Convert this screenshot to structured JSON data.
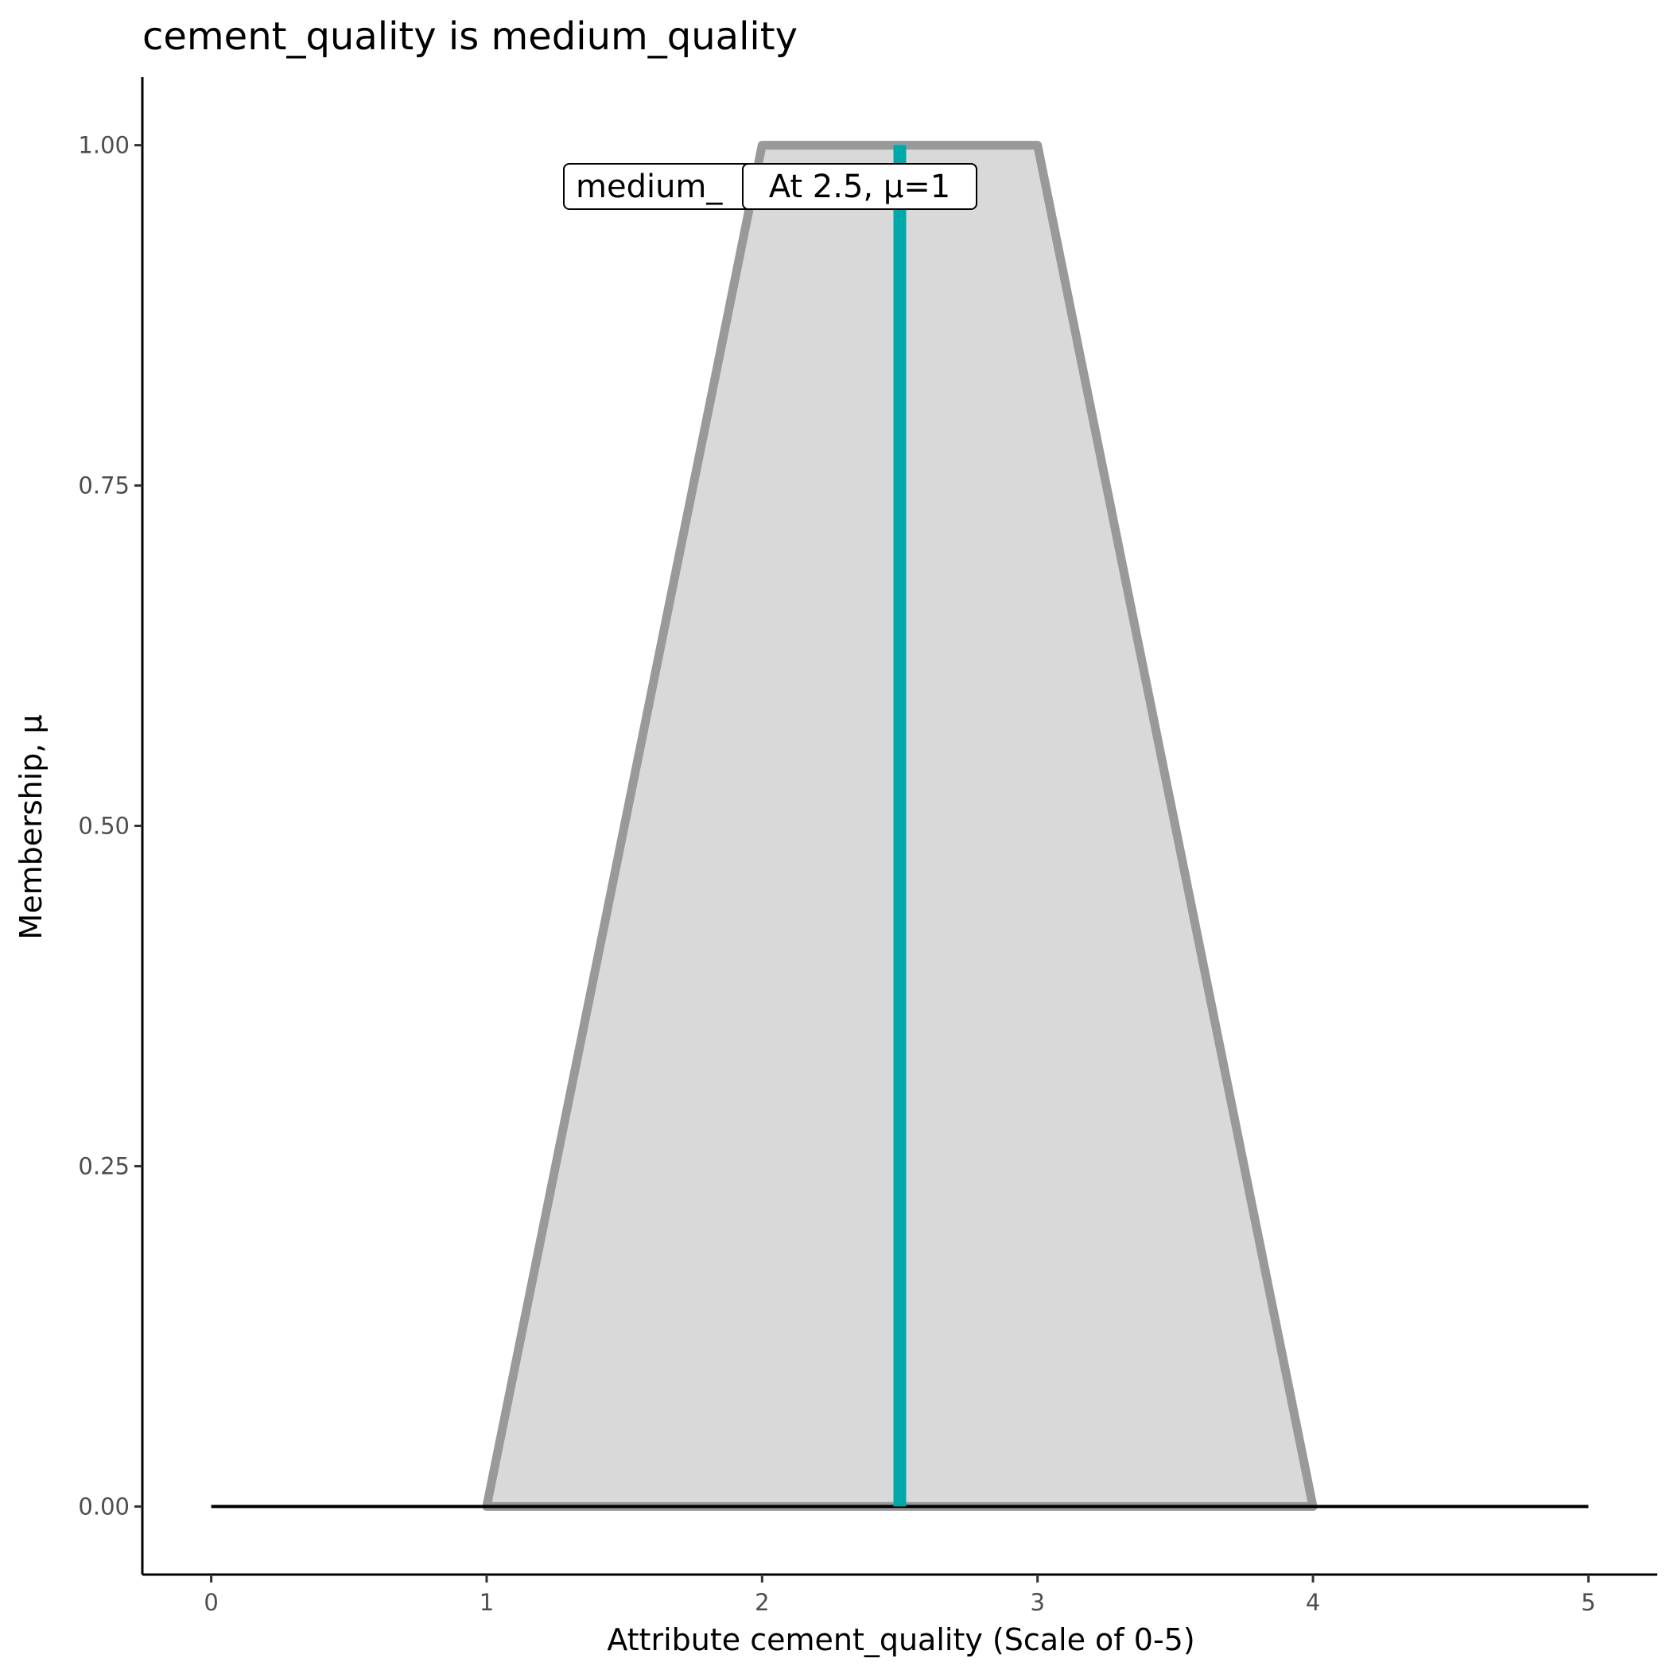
{
  "chart_data": {
    "type": "area",
    "title": "cement_quality is medium_quality",
    "xlabel": "Attribute cement_quality (Scale of 0-5)",
    "ylabel": "Membership, μ",
    "xlim": [
      -0.25,
      5.25
    ],
    "ylim": [
      -0.05,
      1.05
    ],
    "x_ticks": [
      "0",
      "1",
      "2",
      "3",
      "4",
      "5"
    ],
    "y_ticks": [
      "0.00",
      "0.25",
      "0.50",
      "0.75",
      "1.00"
    ],
    "grid": false,
    "series": [
      {
        "x": [
          1,
          2,
          3,
          4
        ],
        "y": [
          0,
          1,
          1,
          0
        ],
        "fill": "#d9d9d9",
        "stroke": "#999999"
      }
    ],
    "baseline": {
      "x": [
        0,
        5
      ],
      "y": 0,
      "color": "#000000"
    },
    "marker_line": {
      "x": 2.5,
      "y": [
        0,
        1
      ],
      "color": "#00a9a9"
    },
    "labels": [
      {
        "text": "medium_quality",
        "visible_text": "medium_",
        "x": 1.75,
        "y": 0.97
      },
      {
        "text": "At 2.5, μ=1",
        "x": 2.5,
        "y": 0.97
      }
    ]
  }
}
